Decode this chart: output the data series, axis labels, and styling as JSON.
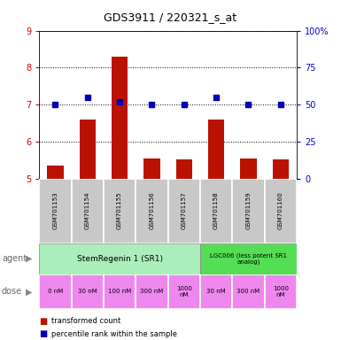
{
  "title": "GDS3911 / 220321_s_at",
  "samples": [
    "GSM701153",
    "GSM701154",
    "GSM701155",
    "GSM701156",
    "GSM701157",
    "GSM701158",
    "GSM701159",
    "GSM701160"
  ],
  "transformed_count": [
    5.35,
    6.6,
    8.3,
    5.55,
    5.52,
    6.6,
    5.55,
    5.52
  ],
  "percentile_rank": [
    50,
    55,
    52,
    50,
    50,
    55,
    50,
    50
  ],
  "left_ylim": [
    5,
    9
  ],
  "left_yticks": [
    5,
    6,
    7,
    8,
    9
  ],
  "right_ylim": [
    0,
    100
  ],
  "right_yticks": [
    0,
    25,
    50,
    75,
    100
  ],
  "right_yticklabels": [
    "0",
    "25",
    "50",
    "75",
    "100%"
  ],
  "bar_color": "#bb1100",
  "dot_color": "#0000bb",
  "bar_width": 0.5,
  "sr1_label": "StemRegenin 1 (SR1)",
  "sr1_color": "#aaeebb",
  "lgc_label": "LGC006 (less potent SR1\nanalog)",
  "lgc_color": "#55dd55",
  "dose_labels": [
    "0 nM",
    "30 nM",
    "100 nM",
    "300 nM",
    "1000\nnM",
    "30 nM",
    "300 nM",
    "1000\nnM"
  ],
  "dose_color": "#ee88ee",
  "bg_color": "#ffffff",
  "sample_row_color": "#c8c8c8",
  "left_tick_color": "#cc0000",
  "right_tick_color": "#0000cc"
}
